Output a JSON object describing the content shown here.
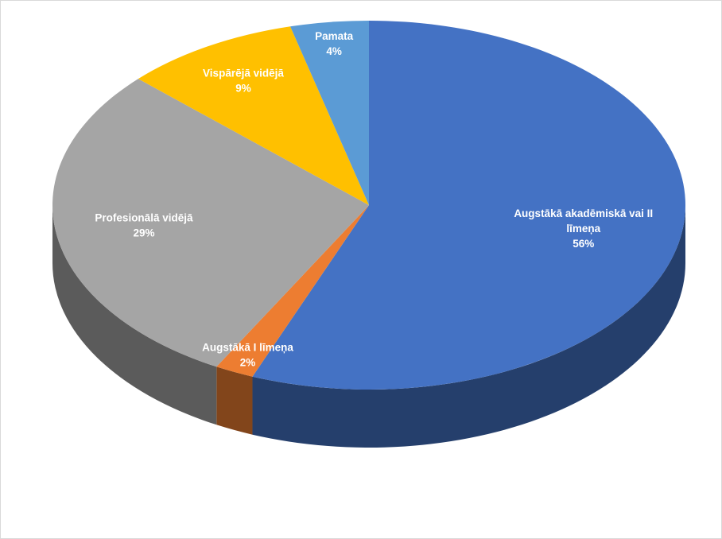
{
  "chart_data": {
    "type": "pie",
    "style": "3d",
    "title": "",
    "slices": [
      {
        "label_lines": [
          "Augstākā akadēmiskā vai II",
          "līmeņa"
        ],
        "pct_label": "56%",
        "value": 56,
        "color": "#4472C4"
      },
      {
        "label_lines": [
          "Augstākā I līmeņa"
        ],
        "pct_label": "2%",
        "value": 2,
        "color": "#ED7D31"
      },
      {
        "label_lines": [
          "Profesionālā vidējā"
        ],
        "pct_label": "29%",
        "value": 29,
        "color": "#A5A5A5"
      },
      {
        "label_lines": [
          "Vispārējā vidējā"
        ],
        "pct_label": "9%",
        "value": 9,
        "color": "#FFC000"
      },
      {
        "label_lines": [
          "Pamata"
        ],
        "pct_label": "4%",
        "value": 4,
        "color": "#5B9BD5"
      }
    ],
    "start_angle_deg": -90,
    "direction": "clockwise",
    "legend": "none",
    "data_labels": "inside, category name and percentage"
  }
}
